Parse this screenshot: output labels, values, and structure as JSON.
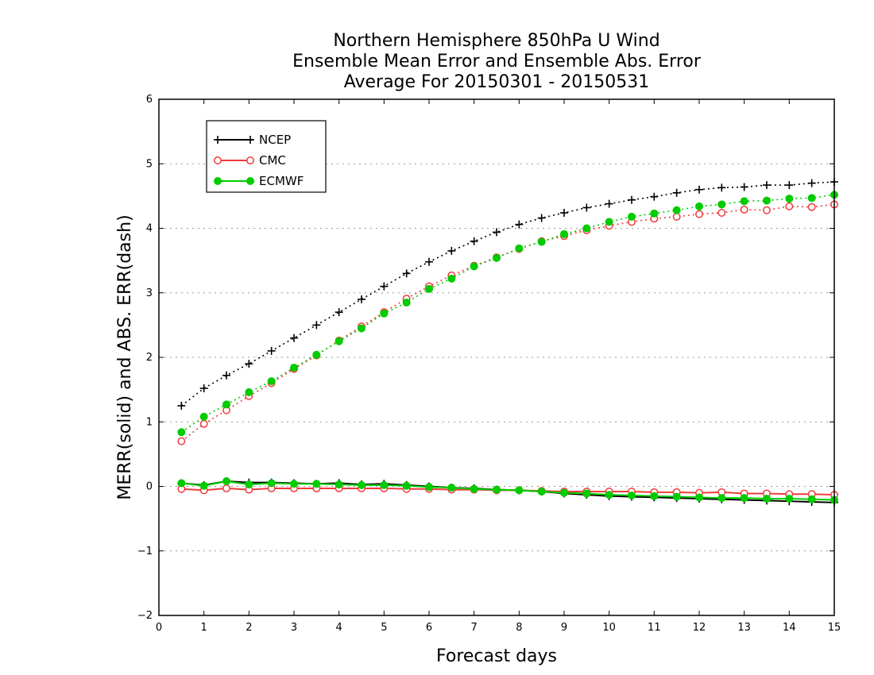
{
  "chart_data": {
    "type": "line",
    "title": [
      "Northern Hemisphere 850hPa U Wind",
      "Ensemble Mean Error and Ensemble Abs. Error",
      "Average For 20150301 - 20150531"
    ],
    "xlabel": "Forecast days",
    "ylabel": "MERR(solid) and ABS. ERR(dash)",
    "xlim": [
      0,
      15
    ],
    "ylim": [
      -2,
      6
    ],
    "xticks": [
      0,
      1,
      2,
      3,
      4,
      5,
      6,
      7,
      8,
      9,
      10,
      11,
      12,
      13,
      14,
      15
    ],
    "yticks": [
      -2,
      -1,
      0,
      1,
      2,
      3,
      4,
      5,
      6
    ],
    "ytick_labels": [
      "−2",
      "−1",
      "0",
      "1",
      "2",
      "3",
      "4",
      "5",
      "6"
    ],
    "grid": "horizontal dotted",
    "legend_position": "top-left",
    "x": [
      0.5,
      1,
      1.5,
      2,
      2.5,
      3,
      3.5,
      4,
      4.5,
      5,
      5.5,
      6,
      6.5,
      7,
      7.5,
      8,
      8.5,
      9,
      9.5,
      10,
      10.5,
      11,
      11.5,
      12,
      12.5,
      13,
      13.5,
      14,
      14.5,
      15
    ],
    "series": [
      {
        "name": "NCEP",
        "color": "#000000",
        "marker": "plus",
        "abs_err": [
          1.25,
          1.52,
          1.72,
          1.9,
          2.1,
          2.3,
          2.5,
          2.7,
          2.9,
          3.1,
          3.3,
          3.48,
          3.65,
          3.8,
          3.94,
          4.06,
          4.16,
          4.24,
          4.32,
          4.38,
          4.44,
          4.49,
          4.55,
          4.6,
          4.63,
          4.64,
          4.67,
          4.67,
          4.7,
          4.72
        ],
        "mean_err": [
          0.05,
          0.02,
          0.08,
          0.06,
          0.06,
          0.05,
          0.04,
          0.05,
          0.03,
          0.04,
          0.02,
          0.0,
          -0.02,
          -0.03,
          -0.05,
          -0.06,
          -0.08,
          -0.11,
          -0.13,
          -0.15,
          -0.16,
          -0.17,
          -0.18,
          -0.19,
          -0.2,
          -0.21,
          -0.22,
          -0.23,
          -0.24,
          -0.25
        ]
      },
      {
        "name": "CMC",
        "color": "#ee3b3b",
        "marker": "open-circle",
        "abs_err": [
          0.7,
          0.97,
          1.18,
          1.4,
          1.6,
          1.82,
          2.03,
          2.26,
          2.48,
          2.7,
          2.91,
          3.1,
          3.27,
          3.42,
          3.55,
          3.68,
          3.8,
          3.88,
          3.97,
          4.04,
          4.1,
          4.15,
          4.18,
          4.22,
          4.24,
          4.29,
          4.28,
          4.34,
          4.33,
          4.37
        ],
        "mean_err": [
          -0.04,
          -0.06,
          -0.03,
          -0.05,
          -0.03,
          -0.03,
          -0.03,
          -0.03,
          -0.03,
          -0.03,
          -0.04,
          -0.04,
          -0.05,
          -0.05,
          -0.06,
          -0.06,
          -0.07,
          -0.08,
          -0.08,
          -0.08,
          -0.08,
          -0.09,
          -0.09,
          -0.1,
          -0.09,
          -0.11,
          -0.11,
          -0.12,
          -0.12,
          -0.13
        ]
      },
      {
        "name": "ECMWF",
        "color": "#00cc00",
        "marker": "filled-circle",
        "abs_err": [
          0.84,
          1.08,
          1.27,
          1.46,
          1.63,
          1.84,
          2.04,
          2.25,
          2.45,
          2.68,
          2.85,
          3.06,
          3.22,
          3.41,
          3.54,
          3.69,
          3.79,
          3.91,
          4.0,
          4.1,
          4.18,
          4.23,
          4.28,
          4.34,
          4.37,
          4.42,
          4.43,
          4.46,
          4.47,
          4.52
        ],
        "mean_err": [
          0.05,
          0.01,
          0.08,
          0.03,
          0.05,
          0.04,
          0.04,
          0.03,
          0.02,
          0.02,
          0.01,
          -0.01,
          -0.02,
          -0.04,
          -0.05,
          -0.06,
          -0.08,
          -0.1,
          -0.11,
          -0.13,
          -0.14,
          -0.15,
          -0.16,
          -0.17,
          -0.18,
          -0.18,
          -0.19,
          -0.19,
          -0.2,
          -0.21
        ]
      }
    ]
  }
}
